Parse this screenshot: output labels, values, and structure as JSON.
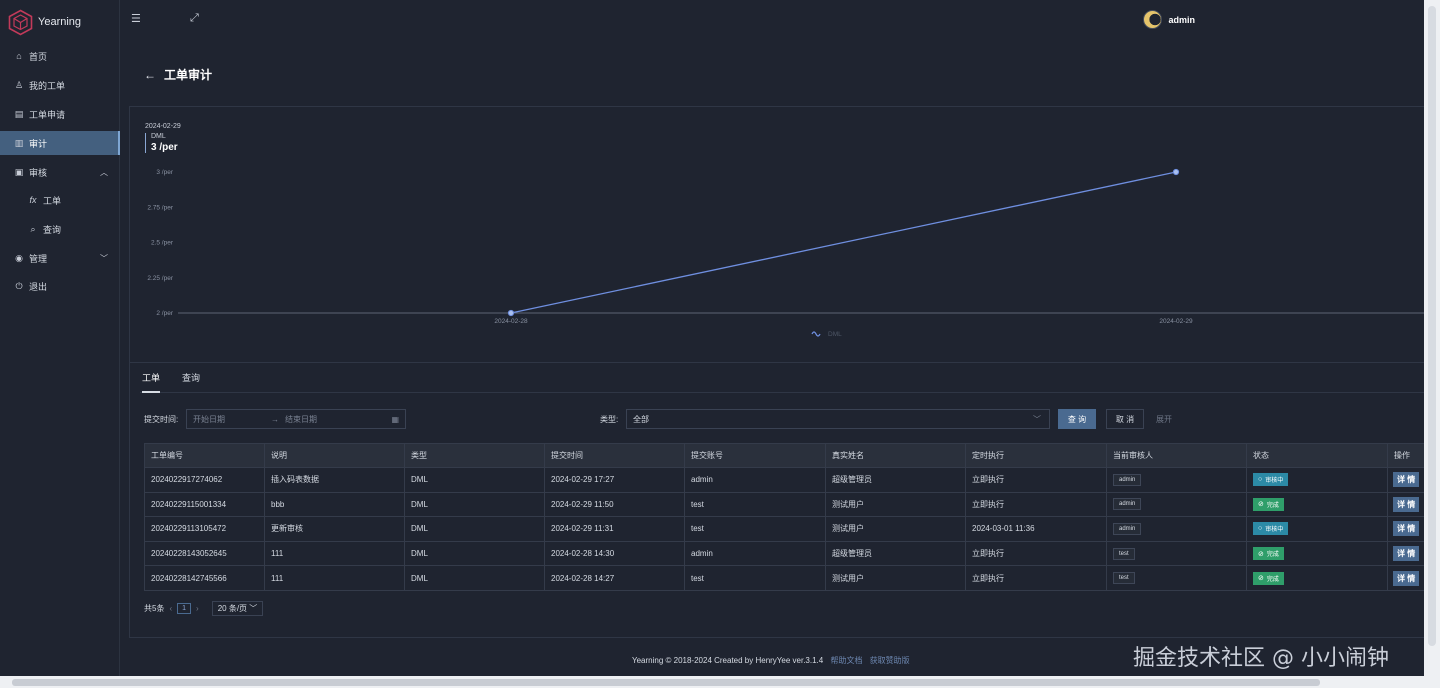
{
  "app": {
    "name": "Yearning"
  },
  "sidebar": {
    "items": [
      {
        "label": "首页",
        "icon": "home-icon"
      },
      {
        "label": "我的工单",
        "icon": "user-icon"
      },
      {
        "label": "工单申请",
        "icon": "form-icon"
      },
      {
        "label": "审计",
        "icon": "chart-icon"
      },
      {
        "label": "审核",
        "icon": "audit-icon"
      },
      {
        "label": "工单",
        "icon": "function-icon"
      },
      {
        "label": "查询",
        "icon": "search-icon"
      },
      {
        "label": "管理",
        "icon": "eye-icon"
      },
      {
        "label": "退出",
        "icon": "logout-icon"
      }
    ]
  },
  "topbar": {
    "user": "admin"
  },
  "page": {
    "title": "工单审计"
  },
  "chart_data": {
    "type": "line",
    "categories": [
      "2024-02-28",
      "2024-02-29"
    ],
    "series": [
      {
        "name": "DML",
        "values": [
          2,
          3
        ]
      }
    ],
    "ylim": [
      2,
      3
    ],
    "yticks": [
      "2 /per",
      "2.25 /per",
      "2.5 /per",
      "2.75 /per",
      "3 /per"
    ],
    "color": "#6f8fe0",
    "legend_position": "bottom-center",
    "tooltip": {
      "date": "2024-02-29",
      "series": "DML",
      "value": "3 /per"
    }
  },
  "tabs": [
    "工单",
    "查询"
  ],
  "filters": {
    "time_label": "提交时间:",
    "start_placeholder": "开始日期",
    "end_placeholder": "结束日期",
    "type_label": "类型:",
    "type_value": "全部",
    "query_btn": "查 询",
    "cancel_btn": "取 消",
    "expand_btn": "展开"
  },
  "table": {
    "headers": [
      "工单编号",
      "说明",
      "类型",
      "提交时间",
      "提交账号",
      "真实姓名",
      "定时执行",
      "当前审核人",
      "状态",
      "操作"
    ],
    "rows": [
      [
        "2024022917274062",
        "插入码表数据",
        "DML",
        "2024-02-29 17:27",
        "admin",
        "超级管理员",
        "立即执行",
        "admin",
        "审核中",
        "详 情"
      ],
      [
        "20240229115001334",
        "bbb",
        "DML",
        "2024-02-29 11:50",
        "test",
        "测试用户",
        "立即执行",
        "admin",
        "完成",
        "详 情"
      ],
      [
        "20240229113105472",
        "更新审核",
        "DML",
        "2024-02-29 11:31",
        "test",
        "测试用户",
        "2024-03-01 11:36",
        "admin",
        "审核中",
        "详 情"
      ],
      [
        "20240228143052645",
        "111",
        "DML",
        "2024-02-28 14:30",
        "admin",
        "超级管理员",
        "立即执行",
        "test",
        "完成",
        "详 情"
      ],
      [
        "20240228142745566",
        "111",
        "DML",
        "2024-02-28 14:27",
        "test",
        "测试用户",
        "立即执行",
        "test",
        "完成",
        "详 情"
      ]
    ]
  },
  "pager": {
    "total": "共5条",
    "current": "1",
    "size": "20 条/页"
  },
  "footer": {
    "text": "Yearning © 2018-2024 Created by HenryYee ver.3.1.4",
    "help": "帮助文档",
    "pro": "获取赞助版"
  },
  "watermark": "掘金技术社区 @ 小小闹钟"
}
